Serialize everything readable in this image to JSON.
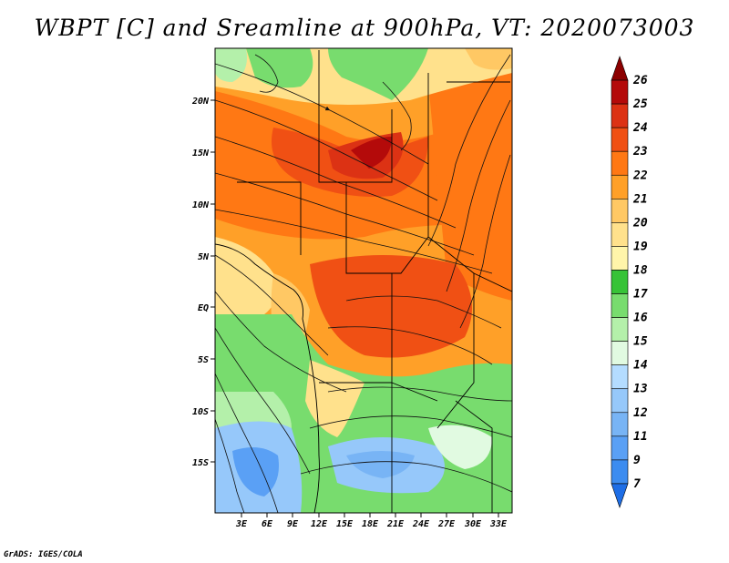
{
  "title": "WBPT [C] and Sreamline at 900hPa, VT: 2020073003",
  "credit": "GrADS: IGES/COLA",
  "axes": {
    "lat_labels": [
      "20N",
      "15N",
      "10N",
      "5N",
      "EQ",
      "5S",
      "10S",
      "15S"
    ],
    "lon_labels": [
      "3E",
      "6E",
      "9E",
      "12E",
      "15E",
      "18E",
      "21E",
      "24E",
      "27E",
      "30E",
      "33E"
    ]
  },
  "colorbar": {
    "labels": [
      "7",
      "9",
      "11",
      "12",
      "13",
      "14",
      "15",
      "16",
      "17",
      "18",
      "19",
      "20",
      "21",
      "22",
      "23",
      "24",
      "25",
      "26"
    ],
    "colors": [
      "#1e6ee6",
      "#3c8cf0",
      "#5aa0f5",
      "#78b4f5",
      "#96c8fa",
      "#b4dcff",
      "#e1fae1",
      "#b4f0aa",
      "#78dc6e",
      "#37c337",
      "#fff5aa",
      "#ffe18c",
      "#ffc864",
      "#ffa028",
      "#ff7814",
      "#f05014",
      "#dc3214",
      "#b40a0a",
      "#8c0000"
    ]
  },
  "chart_data": {
    "type": "heatmap",
    "title": "WBPT [C] and Sreamline at 900hPa, VT: 2020073003",
    "variable": "WBPT [C]",
    "overlay": "Streamline",
    "level": "900hPa",
    "valid_time": "2020073003",
    "lon_range": [
      0,
      34.5
    ],
    "lat_range": [
      -19.5,
      24
    ],
    "color_levels": [
      7,
      9,
      11,
      12,
      13,
      14,
      15,
      16,
      17,
      18,
      19,
      20,
      21,
      22,
      23,
      24,
      25,
      26
    ]
  }
}
